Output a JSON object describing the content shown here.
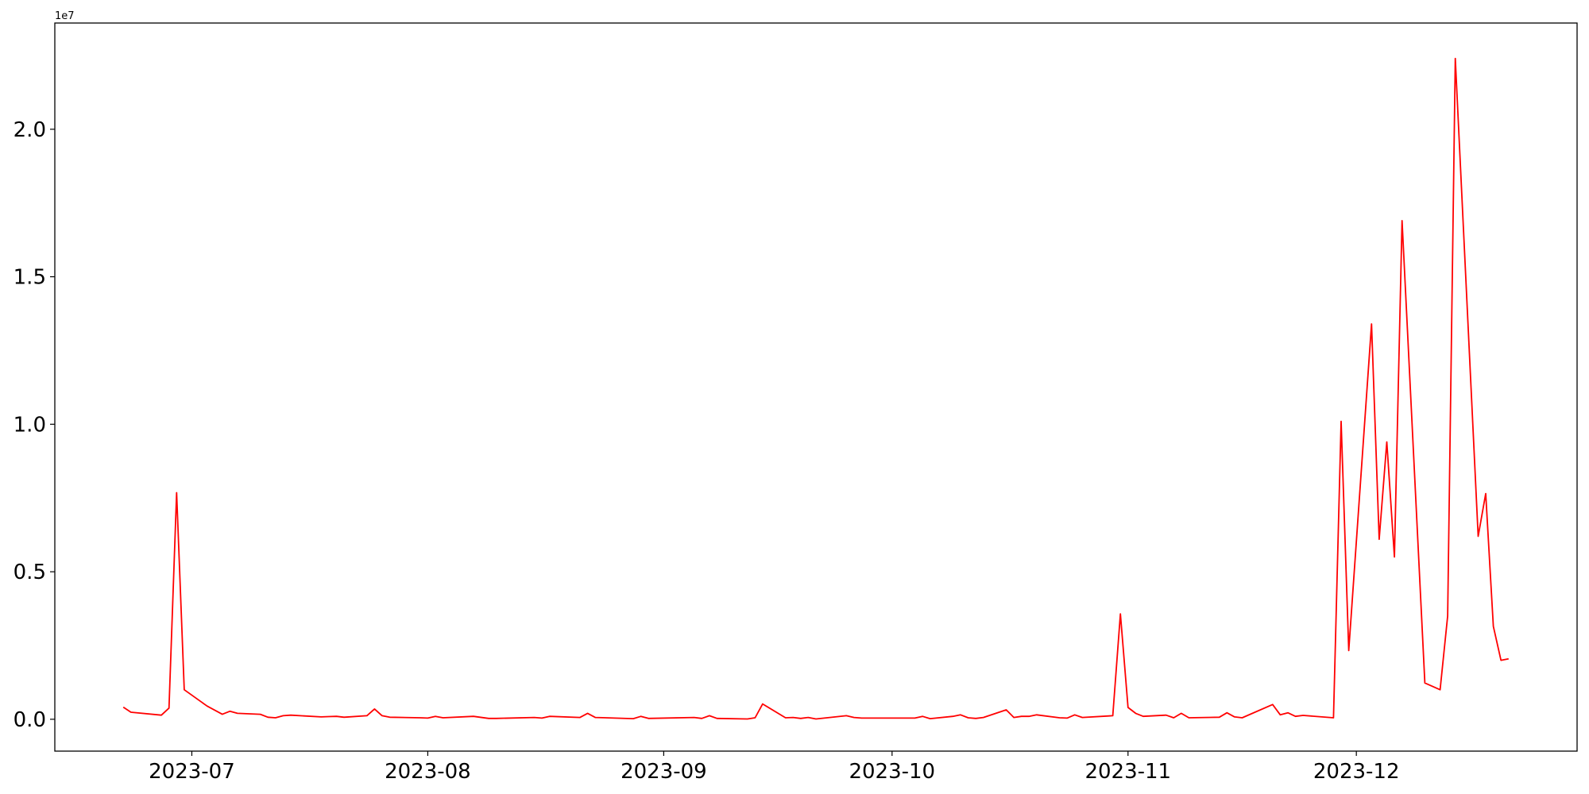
{
  "chart_data": {
    "type": "line",
    "title": "",
    "xlabel": "",
    "ylabel": "",
    "y_offset_label": "1e7",
    "y_multiplier": 10000000,
    "xlim": [
      "2023-06-13",
      "2023-12-30"
    ],
    "ylim": [
      -1080000,
      23600000
    ],
    "grid": false,
    "line_color": "#ff0000",
    "x_ticks": [
      "2023-07",
      "2023-08",
      "2023-09",
      "2023-10",
      "2023-11",
      "2023-12"
    ],
    "y_ticks": [
      0.0,
      0.5,
      1.0,
      1.5,
      2.0
    ],
    "y_tick_labels": [
      "0.0",
      "0.5",
      "1.0",
      "1.5",
      "2.0"
    ],
    "series": [
      {
        "x": [
          "2023-06-22",
          "2023-06-23",
          "2023-06-27",
          "2023-06-28",
          "2023-06-29",
          "2023-06-30",
          "2023-07-03",
          "2023-07-05",
          "2023-07-06",
          "2023-07-07",
          "2023-07-10",
          "2023-07-11",
          "2023-07-12",
          "2023-07-13",
          "2023-07-14",
          "2023-07-18",
          "2023-07-19",
          "2023-07-20",
          "2023-07-21",
          "2023-07-24",
          "2023-07-25",
          "2023-07-26",
          "2023-07-27",
          "2023-07-31",
          "2023-08-01",
          "2023-08-02",
          "2023-08-03",
          "2023-08-07",
          "2023-08-09",
          "2023-08-10",
          "2023-08-15",
          "2023-08-16",
          "2023-08-17",
          "2023-08-21",
          "2023-08-22",
          "2023-08-23",
          "2023-08-28",
          "2023-08-29",
          "2023-08-30",
          "2023-09-05",
          "2023-09-06",
          "2023-09-07",
          "2023-09-08",
          "2023-09-12",
          "2023-09-13",
          "2023-09-14",
          "2023-09-17",
          "2023-09-18",
          "2023-09-19",
          "2023-09-20",
          "2023-09-21",
          "2023-09-25",
          "2023-09-26",
          "2023-09-27",
          "2023-10-04",
          "2023-10-05",
          "2023-10-06",
          "2023-10-09",
          "2023-10-10",
          "2023-10-11",
          "2023-10-12",
          "2023-10-13",
          "2023-10-16",
          "2023-10-17",
          "2023-10-18",
          "2023-10-19",
          "2023-10-20",
          "2023-10-23",
          "2023-10-24",
          "2023-10-25",
          "2023-10-26",
          "2023-10-30",
          "2023-10-31",
          "2023-11-01",
          "2023-11-02",
          "2023-11-03",
          "2023-11-06",
          "2023-11-07",
          "2023-11-08",
          "2023-11-09",
          "2023-11-13",
          "2023-11-14",
          "2023-11-15",
          "2023-11-16",
          "2023-11-20",
          "2023-11-21",
          "2023-11-22",
          "2023-11-23",
          "2023-11-24",
          "2023-11-28",
          "2023-11-29",
          "2023-11-30",
          "2023-12-03",
          "2023-12-04",
          "2023-12-05",
          "2023-12-06",
          "2023-12-07",
          "2023-12-10",
          "2023-12-12",
          "2023-12-13",
          "2023-12-14",
          "2023-12-17",
          "2023-12-18",
          "2023-12-19",
          "2023-12-20",
          "2023-12-21"
        ],
        "values": [
          410000,
          240000,
          140000,
          380000,
          7680000,
          1000000,
          450000,
          170000,
          270000,
          200000,
          170000,
          70000,
          50000,
          120000,
          140000,
          80000,
          90000,
          100000,
          70000,
          120000,
          350000,
          120000,
          70000,
          50000,
          40000,
          100000,
          50000,
          100000,
          30000,
          30000,
          60000,
          40000,
          100000,
          60000,
          200000,
          60000,
          20000,
          100000,
          30000,
          60000,
          30000,
          120000,
          30000,
          10000,
          50000,
          520000,
          50000,
          60000,
          30000,
          60000,
          10000,
          120000,
          60000,
          40000,
          40000,
          100000,
          20000,
          100000,
          150000,
          50000,
          30000,
          60000,
          320000,
          60000,
          100000,
          100000,
          150000,
          50000,
          40000,
          150000,
          60000,
          120000,
          3570000,
          400000,
          200000,
          100000,
          140000,
          50000,
          200000,
          50000,
          70000,
          220000,
          80000,
          50000,
          500000,
          150000,
          220000,
          100000,
          130000,
          50000,
          10100000,
          2330000,
          13400000,
          6100000,
          9400000,
          5500000,
          16900000,
          1230000,
          1000000,
          3500000,
          22400000,
          6200000,
          7650000,
          3150000,
          2000000,
          2050000
        ]
      }
    ]
  }
}
